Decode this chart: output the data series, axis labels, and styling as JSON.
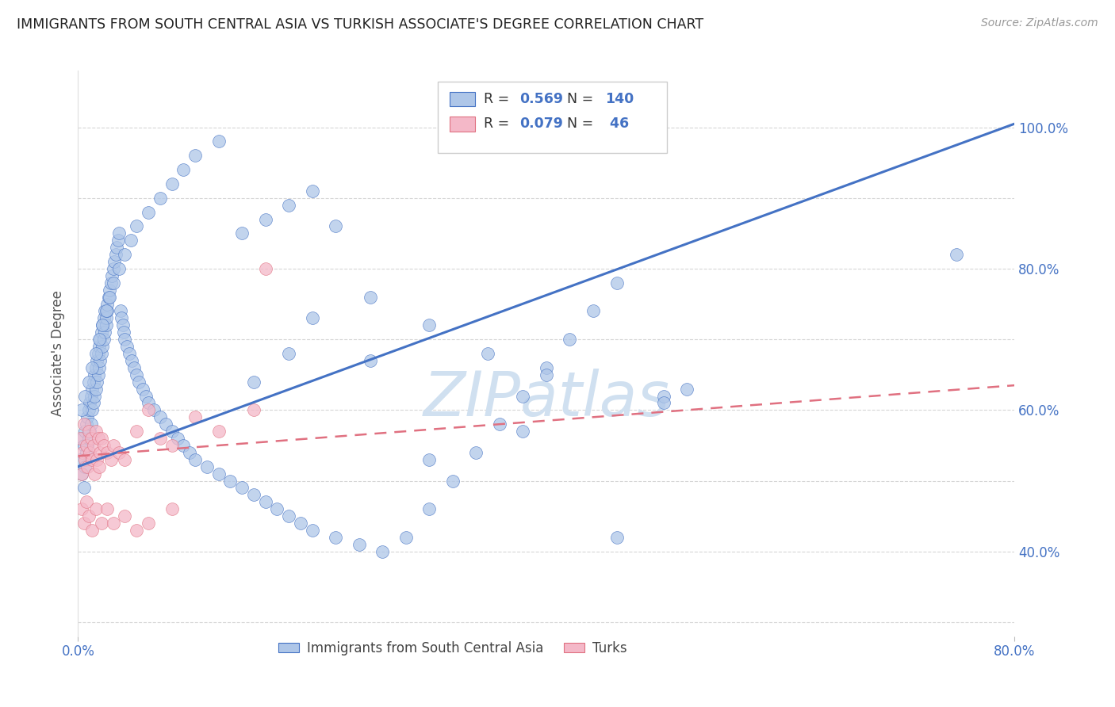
{
  "title": "IMMIGRANTS FROM SOUTH CENTRAL ASIA VS TURKISH ASSOCIATE'S DEGREE CORRELATION CHART",
  "source": "Source: ZipAtlas.com",
  "ylabel_label": "Associate's Degree",
  "legend_label_blue": "Immigrants from South Central Asia",
  "legend_label_pink": "Turks",
  "R_blue": 0.569,
  "N_blue": 140,
  "R_pink": 0.079,
  "N_pink": 46,
  "scatter_blue_color": "#aec6e8",
  "scatter_pink_color": "#f4b8c8",
  "line_blue_color": "#4472c4",
  "line_pink_color": "#e07080",
  "tick_label_color": "#4472c4",
  "title_color": "#222222",
  "source_color": "#999999",
  "watermark_color": "#d0e0f0",
  "background_color": "#ffffff",
  "xlim": [
    0.0,
    0.8
  ],
  "ylim": [
    0.28,
    1.08
  ],
  "blue_line_x0": 0.0,
  "blue_line_x1": 0.8,
  "blue_line_y0": 0.52,
  "blue_line_y1": 1.005,
  "pink_line_x0": 0.0,
  "pink_line_x1": 0.8,
  "pink_line_y0": 0.535,
  "pink_line_y1": 0.635,
  "blue_scatter_x": [
    0.002,
    0.003,
    0.004,
    0.005,
    0.005,
    0.006,
    0.006,
    0.007,
    0.007,
    0.008,
    0.008,
    0.009,
    0.009,
    0.01,
    0.01,
    0.011,
    0.011,
    0.012,
    0.012,
    0.013,
    0.013,
    0.014,
    0.014,
    0.015,
    0.015,
    0.016,
    0.016,
    0.017,
    0.017,
    0.018,
    0.018,
    0.019,
    0.019,
    0.02,
    0.02,
    0.021,
    0.021,
    0.022,
    0.022,
    0.023,
    0.023,
    0.024,
    0.024,
    0.025,
    0.025,
    0.026,
    0.027,
    0.028,
    0.029,
    0.03,
    0.031,
    0.032,
    0.033,
    0.034,
    0.035,
    0.036,
    0.037,
    0.038,
    0.039,
    0.04,
    0.042,
    0.044,
    0.046,
    0.048,
    0.05,
    0.052,
    0.055,
    0.058,
    0.06,
    0.065,
    0.07,
    0.075,
    0.08,
    0.085,
    0.09,
    0.095,
    0.1,
    0.11,
    0.12,
    0.13,
    0.14,
    0.15,
    0.16,
    0.17,
    0.18,
    0.19,
    0.2,
    0.22,
    0.24,
    0.26,
    0.28,
    0.3,
    0.32,
    0.34,
    0.36,
    0.38,
    0.4,
    0.42,
    0.44,
    0.46,
    0.003,
    0.006,
    0.009,
    0.012,
    0.015,
    0.018,
    0.021,
    0.024,
    0.027,
    0.03,
    0.035,
    0.04,
    0.045,
    0.05,
    0.06,
    0.07,
    0.08,
    0.09,
    0.1,
    0.12,
    0.14,
    0.16,
    0.18,
    0.2,
    0.22,
    0.25,
    0.3,
    0.35,
    0.4,
    0.5,
    0.5,
    0.52,
    0.75,
    0.46,
    0.38,
    0.3,
    0.25,
    0.2,
    0.18,
    0.15
  ],
  "blue_scatter_y": [
    0.53,
    0.51,
    0.56,
    0.55,
    0.49,
    0.57,
    0.52,
    0.58,
    0.54,
    0.59,
    0.55,
    0.6,
    0.56,
    0.61,
    0.57,
    0.62,
    0.58,
    0.63,
    0.6,
    0.64,
    0.61,
    0.65,
    0.62,
    0.66,
    0.63,
    0.67,
    0.64,
    0.68,
    0.65,
    0.69,
    0.66,
    0.7,
    0.67,
    0.71,
    0.68,
    0.72,
    0.69,
    0.73,
    0.7,
    0.74,
    0.71,
    0.72,
    0.73,
    0.74,
    0.75,
    0.76,
    0.77,
    0.78,
    0.79,
    0.8,
    0.81,
    0.82,
    0.83,
    0.84,
    0.85,
    0.74,
    0.73,
    0.72,
    0.71,
    0.7,
    0.69,
    0.68,
    0.67,
    0.66,
    0.65,
    0.64,
    0.63,
    0.62,
    0.61,
    0.6,
    0.59,
    0.58,
    0.57,
    0.56,
    0.55,
    0.54,
    0.53,
    0.52,
    0.51,
    0.5,
    0.49,
    0.48,
    0.47,
    0.46,
    0.45,
    0.44,
    0.43,
    0.42,
    0.41,
    0.4,
    0.42,
    0.46,
    0.5,
    0.54,
    0.58,
    0.62,
    0.66,
    0.7,
    0.74,
    0.78,
    0.6,
    0.62,
    0.64,
    0.66,
    0.68,
    0.7,
    0.72,
    0.74,
    0.76,
    0.78,
    0.8,
    0.82,
    0.84,
    0.86,
    0.88,
    0.9,
    0.92,
    0.94,
    0.96,
    0.98,
    0.85,
    0.87,
    0.89,
    0.91,
    0.86,
    0.76,
    0.72,
    0.68,
    0.65,
    0.62,
    0.61,
    0.63,
    0.82,
    0.42,
    0.57,
    0.53,
    0.67,
    0.73,
    0.68,
    0.64
  ],
  "pink_scatter_x": [
    0.002,
    0.003,
    0.004,
    0.005,
    0.006,
    0.007,
    0.008,
    0.009,
    0.01,
    0.011,
    0.012,
    0.013,
    0.014,
    0.015,
    0.016,
    0.017,
    0.018,
    0.019,
    0.02,
    0.022,
    0.025,
    0.028,
    0.03,
    0.035,
    0.04,
    0.05,
    0.06,
    0.07,
    0.08,
    0.1,
    0.12,
    0.15,
    0.003,
    0.005,
    0.007,
    0.009,
    0.012,
    0.015,
    0.02,
    0.025,
    0.03,
    0.04,
    0.05,
    0.06,
    0.08,
    0.16
  ],
  "pink_scatter_y": [
    0.56,
    0.51,
    0.54,
    0.58,
    0.53,
    0.55,
    0.52,
    0.57,
    0.54,
    0.56,
    0.53,
    0.55,
    0.51,
    0.57,
    0.53,
    0.56,
    0.52,
    0.54,
    0.56,
    0.55,
    0.54,
    0.53,
    0.55,
    0.54,
    0.53,
    0.57,
    0.6,
    0.56,
    0.55,
    0.59,
    0.57,
    0.6,
    0.46,
    0.44,
    0.47,
    0.45,
    0.43,
    0.46,
    0.44,
    0.46,
    0.44,
    0.45,
    0.43,
    0.44,
    0.46,
    0.8
  ]
}
